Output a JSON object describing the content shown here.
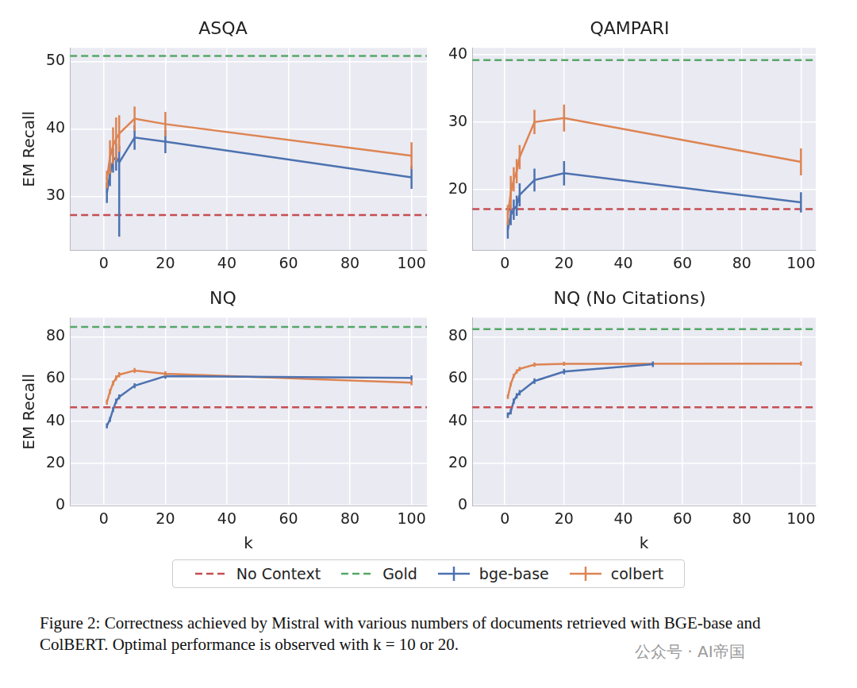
{
  "chart_data": [
    {
      "type": "line",
      "title": "ASQA",
      "y_label": "EM Recall",
      "grid": true,
      "xlim": [
        -11,
        105
      ],
      "xticks": [
        0,
        20,
        40,
        60,
        80,
        100
      ],
      "ylim": [
        22,
        52
      ],
      "yticks": [
        30,
        40,
        50
      ],
      "series": [
        {
          "name": "No Context",
          "color": "#c44e52",
          "line_style": "dashed",
          "x": [
            -11,
            105
          ],
          "values": [
            27.2,
            27.2
          ]
        },
        {
          "name": "Gold",
          "color": "#55a868",
          "line_style": "dashed",
          "x": [
            -11,
            105
          ],
          "values": [
            50.8,
            50.8
          ]
        },
        {
          "name": "bge-base",
          "color": "#4c72b0",
          "line_style": "solid",
          "x": [
            1,
            2,
            3,
            4,
            5,
            10,
            20,
            100
          ],
          "values": [
            30.5,
            33.2,
            35.3,
            35.8,
            35.0,
            38.7,
            38.1,
            32.8
          ],
          "error_minus": [
            1.5,
            1.7,
            1.8,
            2.0,
            11.0,
            1.8,
            1.7,
            1.7
          ],
          "error_plus": [
            1.5,
            1.7,
            1.8,
            2.0,
            2.5,
            1.8,
            1.7,
            1.7
          ]
        },
        {
          "name": "colbert",
          "color": "#dd8452",
          "line_style": "solid",
          "x": [
            1,
            2,
            3,
            4,
            5,
            10,
            20,
            100
          ],
          "values": [
            32.5,
            35.8,
            37.5,
            38.5,
            39.3,
            41.5,
            40.7,
            36.0
          ],
          "error_minus": [
            1.3,
            2.5,
            2.7,
            3.2,
            2.7,
            1.8,
            1.8,
            2.0
          ],
          "error_plus": [
            1.3,
            2.5,
            2.7,
            3.2,
            2.7,
            1.8,
            1.8,
            2.0
          ]
        }
      ]
    },
    {
      "type": "line",
      "title": "QAMPARI",
      "grid": true,
      "xlim": [
        -11,
        105
      ],
      "xticks": [
        0,
        20,
        40,
        60,
        80,
        100
      ],
      "ylim": [
        11,
        41
      ],
      "yticks": [
        20,
        30,
        40
      ],
      "series": [
        {
          "name": "No Context",
          "color": "#c44e52",
          "line_style": "dashed",
          "x": [
            -11,
            105
          ],
          "values": [
            17.1,
            17.1
          ]
        },
        {
          "name": "Gold",
          "color": "#55a868",
          "line_style": "dashed",
          "x": [
            -11,
            105
          ],
          "values": [
            39.2,
            39.2
          ]
        },
        {
          "name": "bge-base",
          "color": "#4c72b0",
          "line_style": "solid",
          "x": [
            1,
            2,
            3,
            4,
            5,
            10,
            20,
            100
          ],
          "values": [
            14.0,
            16.2,
            17.0,
            17.6,
            19.2,
            21.4,
            22.4,
            18.1
          ],
          "error_minus": [
            1.3,
            1.5,
            1.5,
            1.5,
            1.7,
            1.7,
            1.8,
            1.5
          ],
          "error_plus": [
            1.3,
            1.5,
            1.5,
            1.5,
            1.7,
            1.7,
            1.8,
            1.5
          ]
        },
        {
          "name": "colbert",
          "color": "#dd8452",
          "line_style": "solid",
          "x": [
            1,
            2,
            3,
            4,
            5,
            10,
            20,
            100
          ],
          "values": [
            16.2,
            19.5,
            21.5,
            22.7,
            24.8,
            30.0,
            30.6,
            24.1
          ],
          "error_minus": [
            1.5,
            2.5,
            1.8,
            1.8,
            1.8,
            1.8,
            2.0,
            2.0
          ],
          "error_plus": [
            1.5,
            2.5,
            1.8,
            1.8,
            1.8,
            1.8,
            2.0,
            2.0
          ]
        }
      ]
    },
    {
      "type": "line",
      "title": "NQ",
      "x_label": "k",
      "y_label": "EM Recall",
      "grid": true,
      "xlim": [
        -11,
        105
      ],
      "xticks": [
        0,
        20,
        40,
        60,
        80,
        100
      ],
      "ylim": [
        0,
        89
      ],
      "yticks": [
        0,
        20,
        40,
        60,
        80
      ],
      "series": [
        {
          "name": "No Context",
          "color": "#c44e52",
          "line_style": "dashed",
          "x": [
            -11,
            105
          ],
          "values": [
            46.6,
            46.6
          ]
        },
        {
          "name": "Gold",
          "color": "#55a868",
          "line_style": "dashed",
          "x": [
            -11,
            105
          ],
          "values": [
            84.6,
            84.6
          ]
        },
        {
          "name": "bge-base",
          "color": "#4c72b0",
          "line_style": "solid",
          "x": [
            1,
            2,
            3,
            4,
            5,
            10,
            20,
            100
          ],
          "values": [
            37.8,
            40.8,
            45.5,
            49.5,
            51.5,
            56.8,
            61.3,
            60.5
          ],
          "error_minus": [
            1.2,
            1.2,
            1.2,
            1.2,
            1.2,
            1.2,
            1.2,
            1.2
          ],
          "error_plus": [
            1.2,
            1.2,
            1.2,
            1.2,
            1.2,
            1.2,
            1.2,
            1.2
          ]
        },
        {
          "name": "colbert",
          "color": "#dd8452",
          "line_style": "solid",
          "x": [
            1,
            2,
            3,
            4,
            5,
            10,
            20,
            100
          ],
          "values": [
            49.0,
            54.0,
            58.0,
            60.5,
            62.0,
            64.0,
            62.5,
            58.2
          ],
          "error_minus": [
            1.2,
            1.2,
            1.2,
            1.2,
            1.2,
            1.2,
            1.2,
            1.2
          ],
          "error_plus": [
            1.2,
            1.2,
            1.2,
            1.2,
            1.2,
            1.2,
            1.2,
            1.2
          ]
        }
      ]
    },
    {
      "type": "line",
      "title": "NQ (No Citations)",
      "x_label": "k",
      "grid": true,
      "xlim": [
        -11,
        105
      ],
      "xticks": [
        0,
        20,
        40,
        60,
        80,
        100
      ],
      "ylim": [
        0,
        89
      ],
      "yticks": [
        0,
        20,
        40,
        60,
        80
      ],
      "series": [
        {
          "name": "No Context",
          "color": "#c44e52",
          "line_style": "dashed",
          "x": [
            -11,
            105
          ],
          "values": [
            46.6,
            46.6
          ]
        },
        {
          "name": "Gold",
          "color": "#55a868",
          "line_style": "dashed",
          "x": [
            -11,
            105
          ],
          "values": [
            83.6,
            83.6
          ]
        },
        {
          "name": "bge-base",
          "color": "#4c72b0",
          "line_style": "solid",
          "x": [
            1,
            2,
            3,
            4,
            5,
            10,
            20,
            50
          ],
          "values": [
            42.8,
            44.5,
            49.5,
            52.0,
            53.5,
            59.0,
            63.5,
            67.0
          ],
          "error_minus": [
            1.3,
            1.3,
            1.3,
            1.3,
            1.3,
            1.3,
            1.3,
            1.3
          ],
          "error_plus": [
            1.3,
            1.3,
            1.3,
            1.3,
            1.3,
            1.3,
            1.3,
            1.3
          ]
        },
        {
          "name": "colbert",
          "color": "#dd8452",
          "line_style": "solid",
          "x": [
            1,
            2,
            3,
            4,
            5,
            10,
            20,
            100
          ],
          "values": [
            51.5,
            57.5,
            61.5,
            63.5,
            64.8,
            66.8,
            67.2,
            67.3
          ],
          "error_minus": [
            1.0,
            1.0,
            1.0,
            1.0,
            1.0,
            1.0,
            1.0,
            1.0
          ],
          "error_plus": [
            1.0,
            1.0,
            1.0,
            1.0,
            1.0,
            1.0,
            1.0,
            1.0
          ]
        }
      ]
    }
  ],
  "legend": "lower center",
  "caption": "Figure 2: Correctness achieved by Mistral with various numbers of documents retrieved with BGE-base and ColBERT. Optimal performance is observed with k = 10 or 20.",
  "watermark": "公众号 · AI帝国"
}
